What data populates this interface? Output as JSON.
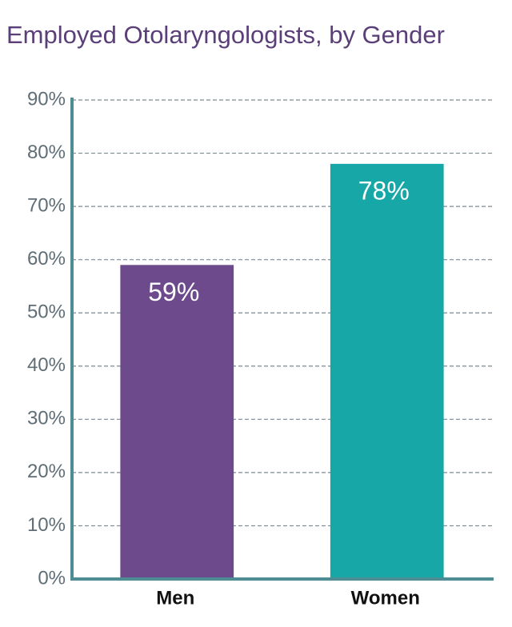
{
  "chart_data": {
    "type": "bar",
    "title": "Employed Otolaryngologists, by Gender",
    "categories": [
      "Men",
      "Women"
    ],
    "values": [
      59,
      78
    ],
    "value_labels": [
      "59%",
      "78%"
    ],
    "colors": [
      "#6c4a8b",
      "#17a7a7"
    ],
    "ylim": [
      0,
      90
    ],
    "yticks": [
      {
        "value": 0,
        "label": "0%"
      },
      {
        "value": 10,
        "label": "10%"
      },
      {
        "value": 20,
        "label": "20%"
      },
      {
        "value": 30,
        "label": "30%"
      },
      {
        "value": 40,
        "label": "40%"
      },
      {
        "value": 50,
        "label": "50%"
      },
      {
        "value": 60,
        "label": "60%"
      },
      {
        "value": 70,
        "label": "70%"
      },
      {
        "value": 80,
        "label": "80%"
      },
      {
        "value": 90,
        "label": "90%"
      }
    ],
    "grid": true
  }
}
